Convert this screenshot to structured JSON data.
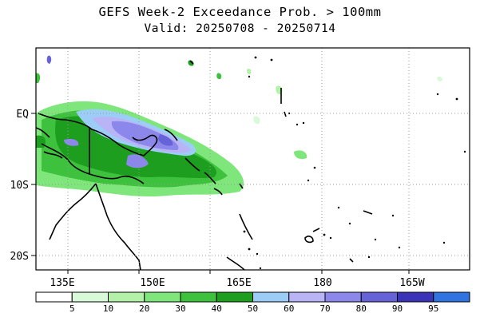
{
  "title": "GEFS Week-2 Exceedance Prob. > 100mm",
  "subtitle": "Valid: 20250708 - 20250714",
  "map": {
    "lon_labels": [
      "135E",
      "150E",
      "165E",
      "180",
      "165W"
    ],
    "lat_labels": [
      "EQ",
      "10S",
      "20S"
    ]
  },
  "legend": {
    "thresholds": [
      "5",
      "10",
      "20",
      "30",
      "40",
      "50",
      "60",
      "70",
      "80",
      "90",
      "95"
    ],
    "colors": [
      "#ffffff",
      "#d9fad9",
      "#b3f0a8",
      "#7ee67a",
      "#3ec23e",
      "#1e9e1e",
      "#9ccdf7",
      "#b9b4f5",
      "#8c87ea",
      "#6663d9",
      "#3a33b8",
      "#2f74e0"
    ]
  }
}
